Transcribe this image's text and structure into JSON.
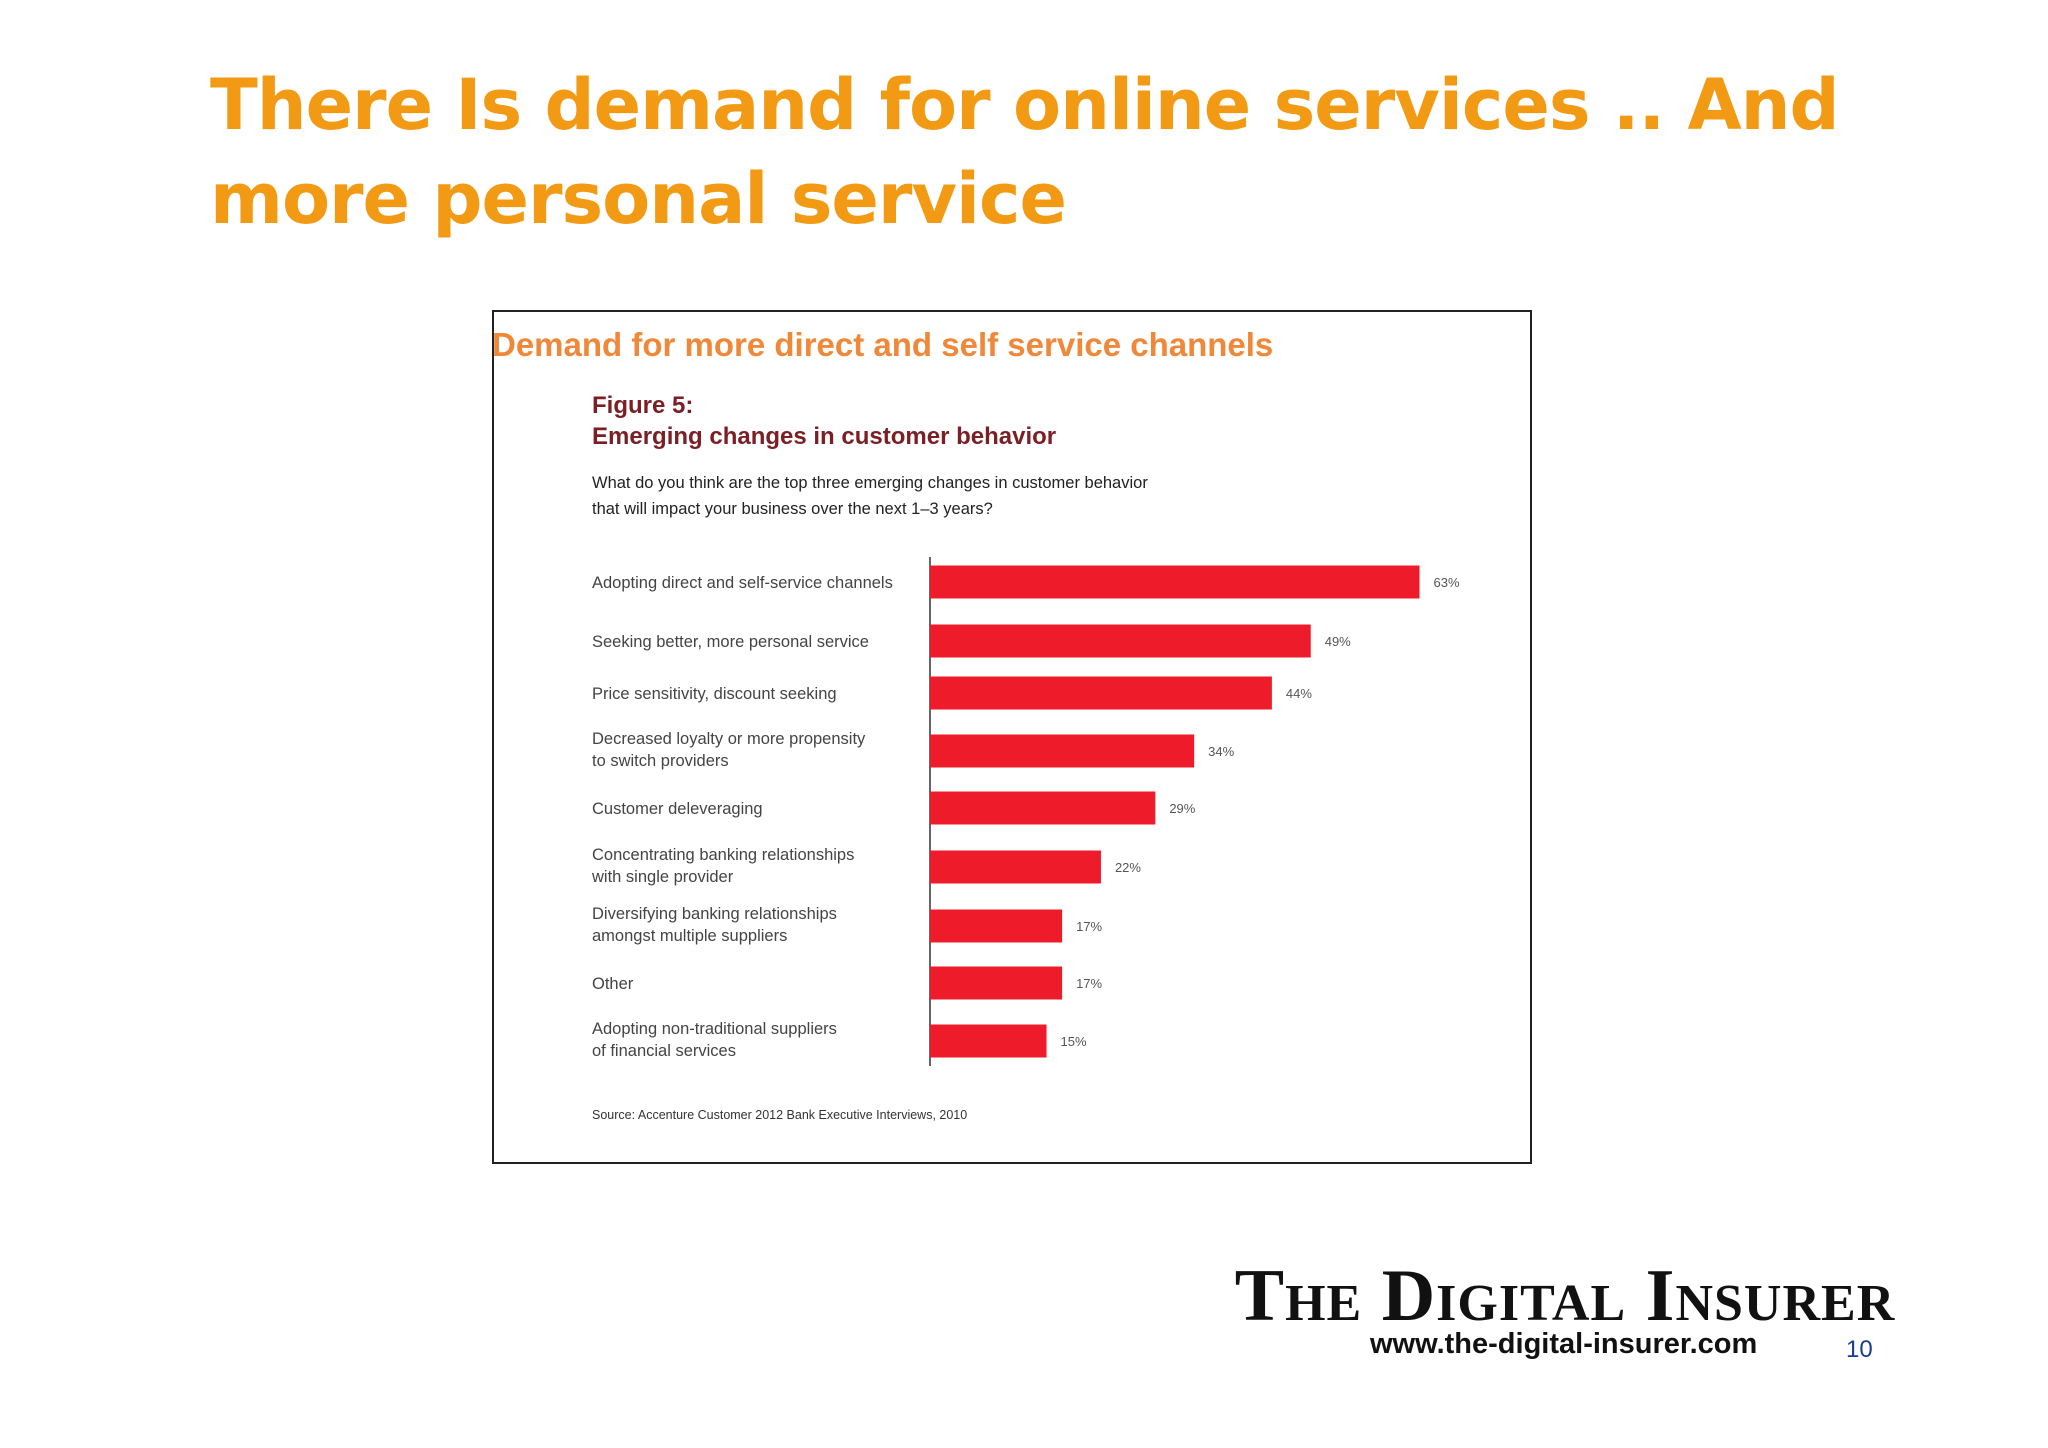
{
  "slide": {
    "title": "There Is demand for online services .. And more personal service",
    "page_number": "10"
  },
  "figure": {
    "caption": "Demand for more direct and self service channels",
    "number": "Figure 5:",
    "title": "Emerging changes in customer behavior",
    "question": "What do you think are the top three emerging changes in customer behavior that will impact your business over the next 1–3 years?",
    "source": "Source: Accenture Customer 2012 Bank Executive Interviews, 2010"
  },
  "brand": {
    "name": "The Digital Insurer",
    "url": "www.the-digital-insurer.com"
  },
  "colors": {
    "title": "#f29a14",
    "caption": "#f0883a",
    "bar": "#ee1c2a",
    "figure_title": "#7b1f25",
    "page_number": "#1d3c8f"
  },
  "chart_data": {
    "type": "bar",
    "orientation": "horizontal",
    "categories": [
      "Adopting direct and self-service channels",
      "Seeking better, more personal service",
      "Price sensitivity, discount seeking",
      "Decreased loyalty or more propensity to switch providers",
      "Customer deleveraging",
      "Concentrating banking relationships with single provider",
      "Diversifying banking relationships amongst multiple suppliers",
      "Other",
      "Adopting non-traditional suppliers of financial services"
    ],
    "category_lines": [
      [
        "Adopting direct and self-service channels"
      ],
      [
        "Seeking better, more personal service"
      ],
      [
        "Price sensitivity, discount seeking"
      ],
      [
        "Decreased loyalty or more propensity",
        "to switch providers"
      ],
      [
        "Customer deleveraging"
      ],
      [
        "Concentrating banking relationships",
        "with single provider"
      ],
      [
        "Diversifying banking relationships",
        "amongst multiple suppliers"
      ],
      [
        "Other"
      ],
      [
        "Adopting non-traditional suppliers",
        "of financial services"
      ]
    ],
    "values": [
      63,
      49,
      44,
      34,
      29,
      22,
      17,
      17,
      15
    ],
    "value_labels": [
      "63%",
      "49%",
      "44%",
      "34%",
      "29%",
      "22%",
      "17%",
      "17%",
      "15%"
    ],
    "xlim": [
      0,
      100
    ],
    "grid": false,
    "legend": "none",
    "bar_color": "#ee1c2a"
  }
}
